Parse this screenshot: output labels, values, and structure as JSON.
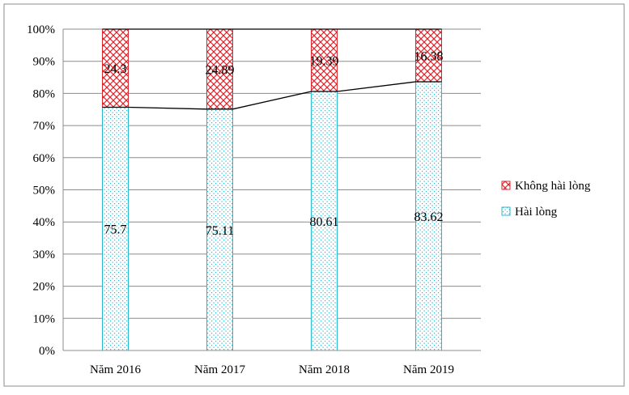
{
  "chart_data": {
    "type": "bar",
    "stacked": true,
    "percent": true,
    "categories": [
      "Năm 2016",
      "Năm 2017",
      "Năm 2018",
      "Năm 2019"
    ],
    "series": [
      {
        "name": "Hài lòng",
        "values": [
          75.7,
          75.11,
          80.61,
          83.62
        ],
        "labels": [
          "75.7",
          "75.11",
          "80.61",
          "83.62"
        ],
        "color": "#29b6cf",
        "pattern": "dotted"
      },
      {
        "name": "Không hài lòng",
        "values": [
          24.3,
          24.89,
          19.39,
          16.38
        ],
        "labels": [
          "24.3",
          "24.89",
          "19.39",
          "16.38"
        ],
        "color": "#e0242b",
        "pattern": "crosshatch"
      }
    ],
    "line_series": {
      "values": [
        75.7,
        75.11,
        80.61,
        83.62
      ],
      "color": "#000000"
    },
    "ylim": [
      0,
      100
    ],
    "y_ticks": [
      "0%",
      "10%",
      "20%",
      "30%",
      "40%",
      "50%",
      "60%",
      "70%",
      "80%",
      "90%",
      "100%"
    ],
    "grid": true,
    "legend_position": "right",
    "title": "",
    "xlabel": "",
    "ylabel": ""
  }
}
